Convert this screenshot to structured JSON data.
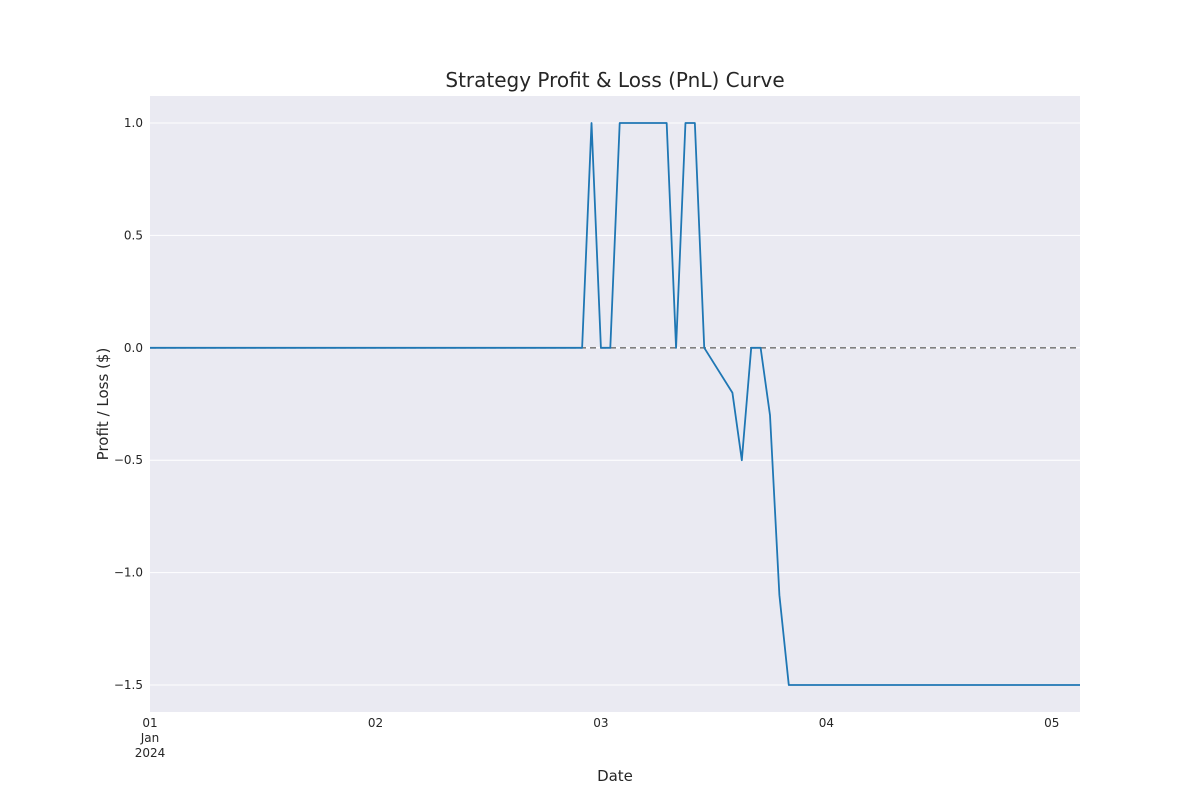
{
  "chart_data": {
    "type": "line",
    "title": "Strategy Profit & Loss (PnL) Curve",
    "xlabel": "Date",
    "ylabel": "Profit / Loss ($)",
    "xlim": [
      "2024-01-01 00:00",
      "2024-01-05 03:00"
    ],
    "ylim": [
      -1.62,
      1.12
    ],
    "x_ticks": [
      {
        "value": "2024-01-01",
        "label": "01",
        "sublabel1": "Jan",
        "sublabel2": "2024"
      },
      {
        "value": "2024-01-02",
        "label": "02"
      },
      {
        "value": "2024-01-03",
        "label": "03"
      },
      {
        "value": "2024-01-04",
        "label": "04"
      },
      {
        "value": "2024-01-05",
        "label": "05"
      }
    ],
    "y_ticks": [
      {
        "value": 1.0,
        "label": "1.0"
      },
      {
        "value": 0.5,
        "label": "0.5"
      },
      {
        "value": 0.0,
        "label": "0.0"
      },
      {
        "value": -0.5,
        "label": "−0.5"
      },
      {
        "value": -1.0,
        "label": "−1.0"
      },
      {
        "value": -1.5,
        "label": "−1.5"
      }
    ],
    "grid": true,
    "reference_line": {
      "y": 0.0,
      "style": "dashed",
      "color": "#808080"
    },
    "series": [
      {
        "color": "#1f77b4",
        "x": [
          "2024-01-01 00:00",
          "2024-01-02 22:00",
          "2024-01-02 23:00",
          "2024-01-03 00:00",
          "2024-01-03 01:00",
          "2024-01-03 02:00",
          "2024-01-03 07:00",
          "2024-01-03 08:00",
          "2024-01-03 09:00",
          "2024-01-03 10:00",
          "2024-01-03 11:00",
          "2024-01-03 14:00",
          "2024-01-03 15:00",
          "2024-01-03 16:00",
          "2024-01-03 17:00",
          "2024-01-03 18:00",
          "2024-01-03 19:00",
          "2024-01-03 20:00",
          "2024-01-03 21:00",
          "2024-01-05 03:00"
        ],
        "y": [
          0,
          0,
          1,
          0,
          0,
          1,
          1,
          0,
          1,
          1,
          0,
          -0.2,
          -0.5,
          0,
          0,
          -0.3,
          -1.1,
          -1.5,
          -1.5,
          -1.5
        ]
      }
    ]
  }
}
